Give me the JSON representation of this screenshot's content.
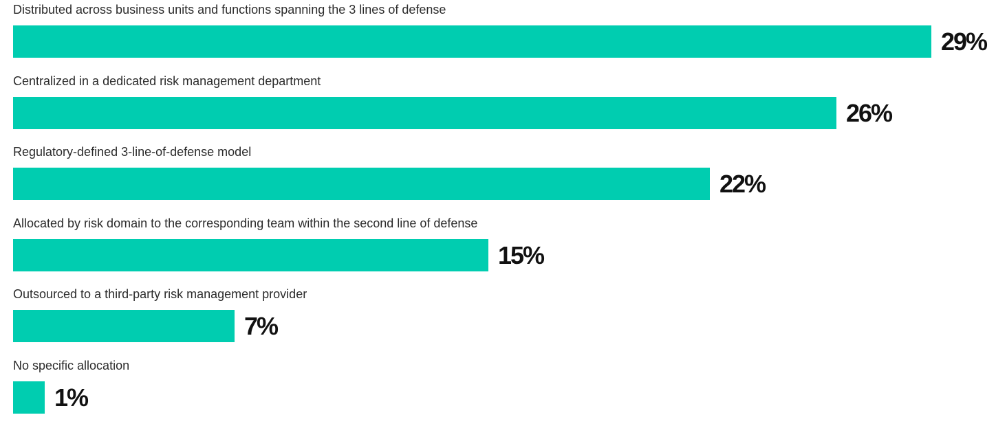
{
  "chart_data": {
    "type": "bar",
    "orientation": "horizontal",
    "categories": [
      "Distributed across business units and functions spanning the 3 lines of defense",
      "Centralized in a dedicated risk management department",
      "Regulatory-defined 3-line-of-defense model",
      "Allocated by risk domain to the corresponding team within the second line of defense",
      "Outsourced to a third-party risk management provider",
      "No specific allocation"
    ],
    "values": [
      29,
      26,
      22,
      15,
      7,
      1
    ],
    "value_labels": [
      "29%",
      "26%",
      "22%",
      "15%",
      "7%",
      "1%"
    ],
    "bar_color": "#00cdb0",
    "xlim": [
      0,
      29
    ],
    "grid": false,
    "legend": "none"
  }
}
